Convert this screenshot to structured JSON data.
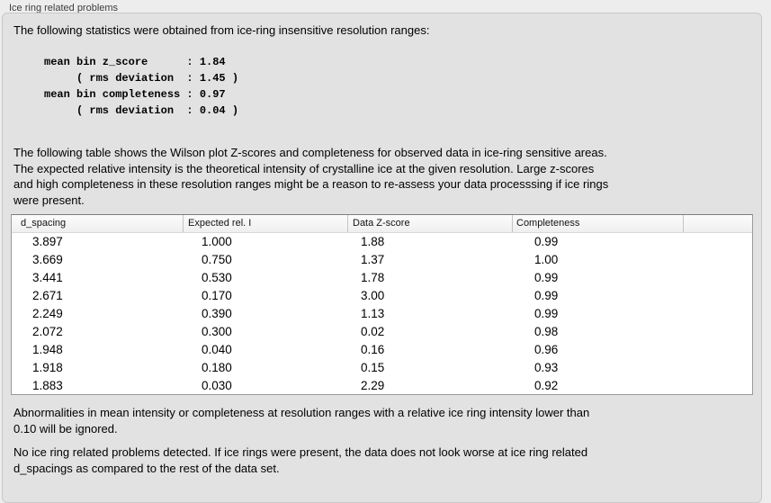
{
  "header": {
    "title": "Ice ring related problems"
  },
  "stats": {
    "intro": "The following statistics were obtained from ice-ring insensitive resolution ranges:",
    "block": "mean bin z_score      : 1.84\n     ( rms deviation  : 1.45 )\nmean bin completeness : 0.97\n     ( rms deviation  : 0.04 )"
  },
  "description": "The following table shows the Wilson plot Z-scores and completeness for observed data in ice-ring sensitive areas.\nThe expected relative intensity is the theoretical intensity of crystalline ice at the given resolution. Large z-scores\nand high completeness in these resolution ranges might be a reason to re-assess your data processsing if ice rings\nwere present.",
  "table": {
    "headers": [
      "d_spacing",
      "Expected rel. I",
      "Data Z-score",
      "Completeness"
    ],
    "rows": [
      [
        "3.897",
        "1.000",
        "1.88",
        "0.99"
      ],
      [
        "3.669",
        "0.750",
        "1.37",
        "1.00"
      ],
      [
        "3.441",
        "0.530",
        "1.78",
        "0.99"
      ],
      [
        "2.671",
        "0.170",
        "3.00",
        "0.99"
      ],
      [
        "2.249",
        "0.390",
        "1.13",
        "0.99"
      ],
      [
        "2.072",
        "0.300",
        "0.02",
        "0.98"
      ],
      [
        "1.948",
        "0.040",
        "0.16",
        "0.96"
      ],
      [
        "1.918",
        "0.180",
        "0.15",
        "0.93"
      ],
      [
        "1.883",
        "0.030",
        "2.29",
        "0.92"
      ]
    ]
  },
  "note": "Abnormalities in mean intensity or completeness at resolution ranges with a relative ice ring intensity lower than\n0.10 will be ignored.",
  "conclusion": "No ice ring related problems detected. If ice rings were present, the data does not look worse at ice ring related\nd_spacings as compared to the rest of the data set."
}
